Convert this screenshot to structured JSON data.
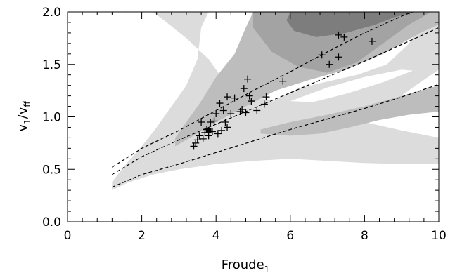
{
  "chart_data": {
    "type": "scatter",
    "title": "",
    "xlabel": "Froude",
    "xlabel_sub": "1",
    "ylabel_v": "v",
    "ylabel_sub1": "1",
    "ylabel_slash": "/v",
    "ylabel_sub2": "ff",
    "xlim": [
      0,
      10
    ],
    "ylim": [
      0,
      2
    ],
    "x_ticks": [
      0,
      2,
      4,
      6,
      8,
      10
    ],
    "x_tick_labels": [
      "0",
      "2",
      "4",
      "6",
      "8",
      "10"
    ],
    "y_ticks": [
      0,
      0.5,
      1,
      1.5,
      2
    ],
    "y_tick_labels": [
      "0.0",
      "0.5",
      "1.0",
      "1.5",
      "2.0"
    ],
    "grid": false,
    "legend": "none",
    "background_regions": [
      {
        "shade": "light",
        "color": "#dcdcdc",
        "polygon": [
          [
            1.2,
            0.3
          ],
          [
            1.6,
            0.37
          ],
          [
            2.3,
            0.45
          ],
          [
            3,
            0.5
          ],
          [
            4,
            0.55
          ],
          [
            5,
            0.58
          ],
          [
            6,
            0.6
          ],
          [
            7,
            0.58
          ],
          [
            8,
            0.56
          ],
          [
            9,
            0.55
          ],
          [
            10,
            0.55
          ],
          [
            10,
            0.8
          ],
          [
            9,
            0.87
          ],
          [
            8,
            0.95
          ],
          [
            7,
            1.0
          ],
          [
            6.5,
            1.05
          ],
          [
            6,
            1.1
          ],
          [
            5,
            1.2
          ],
          [
            4.2,
            1.35
          ],
          [
            3.8,
            1.55
          ],
          [
            3.2,
            1.75
          ],
          [
            2.6,
            1.92
          ],
          [
            2.3,
            2
          ],
          [
            3.8,
            2
          ],
          [
            3.6,
            1.85
          ],
          [
            3.5,
            1.55
          ],
          [
            3.2,
            1.3
          ],
          [
            2.8,
            1.1
          ],
          [
            2.4,
            0.9
          ],
          [
            2,
            0.72
          ],
          [
            1.6,
            0.56
          ],
          [
            1.2,
            0.38
          ]
        ]
      },
      {
        "shade": "light",
        "color": "#dcdcdc",
        "polygon": [
          [
            7.2,
            0.72
          ],
          [
            7.8,
            0.9
          ],
          [
            8.6,
            1.1
          ],
          [
            9.3,
            1.28
          ],
          [
            10,
            1.45
          ],
          [
            10,
            2
          ],
          [
            9.7,
            2
          ],
          [
            9.2,
            1.7
          ],
          [
            8.6,
            1.5
          ],
          [
            8.2,
            1.45
          ],
          [
            7.8,
            1.4
          ],
          [
            7.3,
            1.36
          ],
          [
            6.8,
            1.32
          ],
          [
            6.3,
            1.28
          ],
          [
            5.8,
            1.2
          ],
          [
            5.3,
            1.1
          ],
          [
            4.8,
            0.98
          ],
          [
            4.3,
            0.88
          ],
          [
            3.8,
            0.78
          ],
          [
            3.3,
            0.7
          ],
          [
            2.8,
            0.62
          ],
          [
            2.5,
            0.56
          ],
          [
            3,
            0.58
          ],
          [
            4,
            0.62
          ],
          [
            5,
            0.64
          ],
          [
            6,
            0.66
          ],
          [
            7,
            0.69
          ]
        ]
      },
      {
        "shade": "medium",
        "color": "#bdbdbd",
        "polygon": [
          [
            2.9,
            0.72
          ],
          [
            3.3,
            0.8
          ],
          [
            4,
            0.95
          ],
          [
            4.8,
            1.1
          ],
          [
            5.6,
            1.25
          ],
          [
            6.5,
            1.35
          ],
          [
            7.5,
            1.45
          ],
          [
            8.5,
            1.6
          ],
          [
            9.5,
            1.8
          ],
          [
            10,
            1.88
          ],
          [
            10,
            2
          ],
          [
            5,
            2
          ],
          [
            4.8,
            1.85
          ],
          [
            4.5,
            1.6
          ],
          [
            4,
            1.38
          ],
          [
            3.6,
            1.15
          ],
          [
            3.2,
            0.95
          ],
          [
            2.9,
            0.8
          ]
        ]
      },
      {
        "shade": "medium",
        "color": "#bdbdbd",
        "polygon": [
          [
            5.2,
            0.88
          ],
          [
            6,
            0.95
          ],
          [
            7,
            1.02
          ],
          [
            8,
            1.1
          ],
          [
            9,
            1.2
          ],
          [
            10,
            1.3
          ],
          [
            10,
            1.05
          ],
          [
            9.2,
            1.02
          ],
          [
            8.4,
            0.97
          ],
          [
            7.6,
            0.9
          ],
          [
            6.8,
            0.84
          ],
          [
            6,
            0.82
          ],
          [
            5.2,
            0.84
          ]
        ]
      },
      {
        "shade": "dark",
        "color": "#a3a3a3",
        "polygon": [
          [
            5,
            2
          ],
          [
            5,
            1.85
          ],
          [
            5.5,
            1.62
          ],
          [
            6.2,
            1.48
          ],
          [
            7,
            1.42
          ],
          [
            7.8,
            1.52
          ],
          [
            8.5,
            1.7
          ],
          [
            9.2,
            1.88
          ],
          [
            9.8,
            2
          ]
        ]
      },
      {
        "shade": "darkest",
        "color": "#7d7d7d",
        "polygon": [
          [
            6,
            2
          ],
          [
            5.9,
            1.92
          ],
          [
            6.1,
            1.82
          ],
          [
            6.7,
            1.76
          ],
          [
            7.5,
            1.8
          ],
          [
            8.3,
            1.88
          ],
          [
            8.8,
            1.95
          ],
          [
            9.4,
            2
          ]
        ]
      }
    ],
    "white_wedge": [
      [
        6,
        1.15
      ],
      [
        7,
        1.28
      ],
      [
        8,
        1.38
      ],
      [
        9,
        1.45
      ],
      [
        9.3,
        1.44
      ],
      [
        8.5,
        1.33
      ],
      [
        7.5,
        1.22
      ],
      [
        6.6,
        1.14
      ]
    ],
    "dashed_curves": [
      {
        "x": [
          1.2,
          2,
          3,
          4,
          5,
          6,
          7,
          8,
          9,
          10
        ],
        "y": [
          0.52,
          0.7,
          0.87,
          1.06,
          1.25,
          1.43,
          1.62,
          1.8,
          1.96,
          2.1
        ]
      },
      {
        "x": [
          1.2,
          2,
          3,
          4,
          5,
          6,
          7,
          8,
          9,
          10
        ],
        "y": [
          0.45,
          0.62,
          0.78,
          0.93,
          1.08,
          1.23,
          1.38,
          1.53,
          1.69,
          1.85
        ]
      },
      {
        "x": [
          1.2,
          2,
          3,
          4,
          5,
          6,
          7,
          8,
          9,
          10
        ],
        "y": [
          0.33,
          0.45,
          0.55,
          0.66,
          0.77,
          0.88,
          0.98,
          1.08,
          1.19,
          1.31
        ]
      }
    ],
    "points": [
      {
        "x": 3.4,
        "y": 0.72
      },
      {
        "x": 3.45,
        "y": 0.75
      },
      {
        "x": 3.5,
        "y": 0.78
      },
      {
        "x": 3.55,
        "y": 0.82
      },
      {
        "x": 3.6,
        "y": 0.95
      },
      {
        "x": 3.65,
        "y": 0.79
      },
      {
        "x": 3.7,
        "y": 0.85
      },
      {
        "x": 3.75,
        "y": 0.88
      },
      {
        "x": 3.8,
        "y": 0.82
      },
      {
        "x": 3.85,
        "y": 0.95
      },
      {
        "x": 3.9,
        "y": 0.86
      },
      {
        "x": 3.95,
        "y": 0.96
      },
      {
        "x": 4.0,
        "y": 1.03
      },
      {
        "x": 4.05,
        "y": 0.84
      },
      {
        "x": 4.1,
        "y": 1.13
      },
      {
        "x": 4.15,
        "y": 0.87
      },
      {
        "x": 4.2,
        "y": 1.06
      },
      {
        "x": 4.25,
        "y": 0.95
      },
      {
        "x": 4.3,
        "y": 0.9
      },
      {
        "x": 4.3,
        "y": 1.19
      },
      {
        "x": 4.4,
        "y": 1.03
      },
      {
        "x": 4.5,
        "y": 1.18
      },
      {
        "x": 4.65,
        "y": 1.05
      },
      {
        "x": 4.7,
        "y": 1.07
      },
      {
        "x": 4.75,
        "y": 1.27
      },
      {
        "x": 4.8,
        "y": 1.04
      },
      {
        "x": 4.85,
        "y": 1.36
      },
      {
        "x": 4.9,
        "y": 1.2
      },
      {
        "x": 4.95,
        "y": 1.15
      },
      {
        "x": 5.1,
        "y": 1.06
      },
      {
        "x": 5.3,
        "y": 1.12
      },
      {
        "x": 5.35,
        "y": 1.19
      },
      {
        "x": 5.8,
        "y": 1.34
      },
      {
        "x": 6.85,
        "y": 1.59
      },
      {
        "x": 7.05,
        "y": 1.5
      },
      {
        "x": 7.3,
        "y": 1.57
      },
      {
        "x": 7.3,
        "y": 1.78
      },
      {
        "x": 7.45,
        "y": 1.76
      },
      {
        "x": 8.2,
        "y": 1.72
      }
    ],
    "highlight_point": {
      "x": 3.8,
      "y": 0.87,
      "marker": "filled-square"
    }
  }
}
